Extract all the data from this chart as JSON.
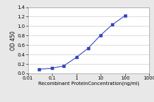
{
  "x": [
    0.03,
    0.1,
    0.3,
    1,
    3,
    10,
    30,
    100
  ],
  "y": [
    0.09,
    0.11,
    0.16,
    0.34,
    0.53,
    0.81,
    1.03,
    1.22
  ],
  "line_color": "#3344BB",
  "marker": "s",
  "marker_size": 2.5,
  "xlabel": "Recombinant ProteinConcentration(ng/ml)",
  "ylabel": "OD 450",
  "xlim": [
    0.01,
    1000
  ],
  "ylim": [
    0,
    1.4
  ],
  "yticks": [
    0,
    0.2,
    0.4,
    0.6,
    0.8,
    1.0,
    1.2,
    1.4
  ],
  "xticks": [
    0.01,
    0.1,
    1,
    10,
    100,
    1000
  ],
  "xtick_labels": [
    "0.01",
    "0.1",
    "1",
    "10",
    "100",
    "1000"
  ],
  "background_color": "#e8e8e8",
  "plot_bg": "#ffffff",
  "xlabel_fontsize": 5.0,
  "ylabel_fontsize": 5.5,
  "tick_fontsize": 5.0,
  "linewidth": 0.8,
  "grid_color": "#cccccc",
  "grid_linewidth": 0.5
}
